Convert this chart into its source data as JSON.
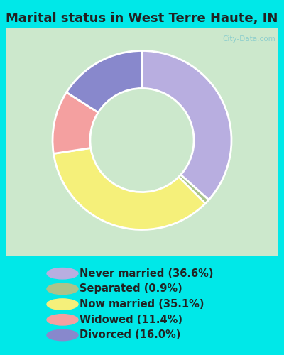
{
  "title": "Marital status in West Terre Haute, IN",
  "categories": [
    "Never married",
    "Separated",
    "Now married",
    "Widowed",
    "Divorced"
  ],
  "values": [
    36.6,
    0.9,
    35.1,
    11.4,
    16.0
  ],
  "colors": [
    "#b8aee0",
    "#aac48a",
    "#f5f07a",
    "#f4a0a0",
    "#8888cc"
  ],
  "legend_labels": [
    "Never married (36.6%)",
    "Separated (0.9%)",
    "Now married (35.1%)",
    "Widowed (11.4%)",
    "Divorced (16.0%)"
  ],
  "bg_cyan": "#00e8e8",
  "bg_chart": "#d8edd8",
  "title_fontsize": 13,
  "legend_fontsize": 10.5,
  "watermark": "City-Data.com"
}
